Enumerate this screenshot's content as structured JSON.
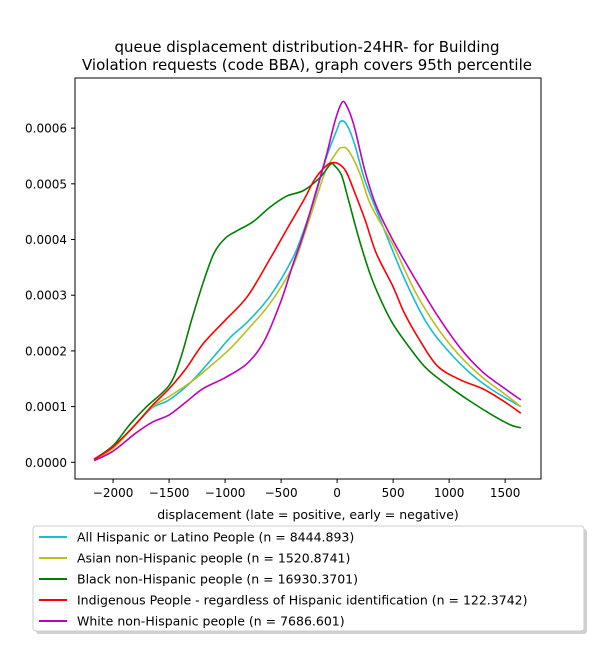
{
  "chart_data": {
    "type": "line",
    "title_line1": "queue displacement distribution-24HR-  for Building",
    "title_line2": "Violation  requests (code BBA), graph covers 95th percentile",
    "xlabel": "displacement (late = positive, early = negative)",
    "ylabel": "",
    "xlim": [
      -2340,
      1820
    ],
    "ylim": [
      -3e-05,
      0.00069
    ],
    "x_ticks": [
      -2000,
      -1500,
      -1000,
      -500,
      0,
      500,
      1000,
      1500
    ],
    "x_tick_labels": [
      "−2000",
      "−1500",
      "−1000",
      "−500",
      "0",
      "500",
      "1000",
      "1500"
    ],
    "y_ticks": [
      0,
      0.0001,
      0.0002,
      0.0003,
      0.0004,
      0.0005,
      0.0006
    ],
    "y_tick_labels": [
      "0.0000",
      "0.0001",
      "0.0002",
      "0.0003",
      "0.0004",
      "0.0005",
      "0.0006"
    ],
    "grid": false,
    "legend_position": "below-plot",
    "series": [
      {
        "name": "All Hispanic or Latino People (n = 8444.893)",
        "color": "#17becf",
        "points": [
          [
            -2170,
            5.5e-06
          ],
          [
            -2000,
            2.5e-05
          ],
          [
            -1800,
            6.8e-05
          ],
          [
            -1650,
            9.8e-05
          ],
          [
            -1500,
            0.000112
          ],
          [
            -1300,
            0.000145
          ],
          [
            -1100,
            0.00019
          ],
          [
            -950,
            0.000225
          ],
          [
            -800,
            0.000252
          ],
          [
            -600,
            0.000298
          ],
          [
            -400,
            0.000365
          ],
          [
            -300,
            0.000415
          ],
          [
            -200,
            0.000475
          ],
          [
            -100,
            0.000545
          ],
          [
            0,
            0.000598
          ],
          [
            30,
            0.000612
          ],
          [
            80,
            0.000608
          ],
          [
            150,
            0.000575
          ],
          [
            250,
            0.000505
          ],
          [
            400,
            0.000428
          ],
          [
            600,
            0.00033
          ],
          [
            800,
            0.00025
          ],
          [
            1000,
            0.000198
          ],
          [
            1200,
            0.000158
          ],
          [
            1400,
            0.000128
          ],
          [
            1640,
            0.0001
          ]
        ]
      },
      {
        "name": "Asian non-Hispanic people (n = 1520.8741)",
        "color": "#bcbd22",
        "points": [
          [
            -2170,
            5.5e-06
          ],
          [
            -2000,
            2.5e-05
          ],
          [
            -1800,
            6.8e-05
          ],
          [
            -1650,
            0.0001
          ],
          [
            -1500,
            0.000118
          ],
          [
            -1300,
            0.000145
          ],
          [
            -1100,
            0.000178
          ],
          [
            -950,
            0.000205
          ],
          [
            -800,
            0.000238
          ],
          [
            -600,
            0.000285
          ],
          [
            -400,
            0.00035
          ],
          [
            -300,
            0.000405
          ],
          [
            -200,
            0.000465
          ],
          [
            -100,
            0.000525
          ],
          [
            0,
            0.000558
          ],
          [
            40,
            0.000565
          ],
          [
            100,
            0.00056
          ],
          [
            200,
            0.00052
          ],
          [
            300,
            0.000462
          ],
          [
            500,
            0.00039
          ],
          [
            700,
            0.000305
          ],
          [
            900,
            0.00024
          ],
          [
            1100,
            0.00019
          ],
          [
            1300,
            0.000152
          ],
          [
            1500,
            0.000122
          ],
          [
            1640,
            0.0001
          ]
        ]
      },
      {
        "name": "Black non-Hispanic people (n = 16930.3701)",
        "color": "#008000",
        "points": [
          [
            -2170,
            5.5e-06
          ],
          [
            -2000,
            3e-05
          ],
          [
            -1850,
            6.8e-05
          ],
          [
            -1700,
            0.0001
          ],
          [
            -1500,
            0.000138
          ],
          [
            -1400,
            0.000185
          ],
          [
            -1300,
            0.000255
          ],
          [
            -1200,
            0.00032
          ],
          [
            -1100,
            0.000375
          ],
          [
            -1000,
            0.000402
          ],
          [
            -900,
            0.000415
          ],
          [
            -750,
            0.000432
          ],
          [
            -600,
            0.000458
          ],
          [
            -450,
            0.000478
          ],
          [
            -300,
            0.000488
          ],
          [
            -150,
            0.000512
          ],
          [
            -60,
            0.000535
          ],
          [
            -20,
            0.000532
          ],
          [
            40,
            0.000515
          ],
          [
            100,
            0.000472
          ],
          [
            200,
            0.000398
          ],
          [
            300,
            0.000335
          ],
          [
            400,
            0.000287
          ],
          [
            500,
            0.000248
          ],
          [
            650,
            0.000205
          ],
          [
            800,
            0.000168
          ],
          [
            1000,
            0.000136
          ],
          [
            1200,
            0.000108
          ],
          [
            1400,
            8.3e-05
          ],
          [
            1550,
            6.7e-05
          ],
          [
            1640,
            6.2e-05
          ]
        ]
      },
      {
        "name": "Indigenous People - regardless of Hispanic identification (n = 122.3742)",
        "color": "#ff0000",
        "points": [
          [
            -2170,
            5.5e-06
          ],
          [
            -2000,
            2.8e-05
          ],
          [
            -1800,
            6.8e-05
          ],
          [
            -1650,
            0.000102
          ],
          [
            -1500,
            0.000132
          ],
          [
            -1350,
            0.000168
          ],
          [
            -1200,
            0.000212
          ],
          [
            -1000,
            0.000255
          ],
          [
            -800,
            0.000298
          ],
          [
            -600,
            0.000365
          ],
          [
            -450,
            0.000418
          ],
          [
            -300,
            0.00047
          ],
          [
            -200,
            0.000508
          ],
          [
            -100,
            0.000532
          ],
          [
            -40,
            0.000538
          ],
          [
            20,
            0.000535
          ],
          [
            80,
            0.000522
          ],
          [
            150,
            0.000488
          ],
          [
            250,
            0.000435
          ],
          [
            350,
            0.000375
          ],
          [
            500,
            0.000315
          ],
          [
            600,
            0.000268
          ],
          [
            750,
            0.000215
          ],
          [
            900,
            0.000172
          ],
          [
            1100,
            0.000148
          ],
          [
            1300,
            0.000132
          ],
          [
            1500,
            0.000108
          ],
          [
            1640,
            8.8e-05
          ]
        ]
      },
      {
        "name": "White non-Hispanic people (n = 7686.601)",
        "color": "#bf00bf",
        "points": [
          [
            -2170,
            3e-06
          ],
          [
            -2000,
            2e-05
          ],
          [
            -1800,
            5.2e-05
          ],
          [
            -1650,
            7.2e-05
          ],
          [
            -1500,
            8.5e-05
          ],
          [
            -1350,
            0.000108
          ],
          [
            -1200,
            0.000132
          ],
          [
            -1000,
            0.000152
          ],
          [
            -800,
            0.000178
          ],
          [
            -650,
            0.000218
          ],
          [
            -500,
            0.00029
          ],
          [
            -400,
            0.000352
          ],
          [
            -300,
            0.00041
          ],
          [
            -200,
            0.000478
          ],
          [
            -100,
            0.000548
          ],
          [
            -20,
            0.000612
          ],
          [
            40,
            0.000645
          ],
          [
            80,
            0.000642
          ],
          [
            150,
            0.000605
          ],
          [
            250,
            0.000522
          ],
          [
            350,
            0.00046
          ],
          [
            500,
            0.000398
          ],
          [
            700,
            0.000328
          ],
          [
            900,
            0.000262
          ],
          [
            1100,
            0.000205
          ],
          [
            1300,
            0.000162
          ],
          [
            1500,
            0.000132
          ],
          [
            1640,
            0.000112
          ]
        ]
      }
    ]
  }
}
